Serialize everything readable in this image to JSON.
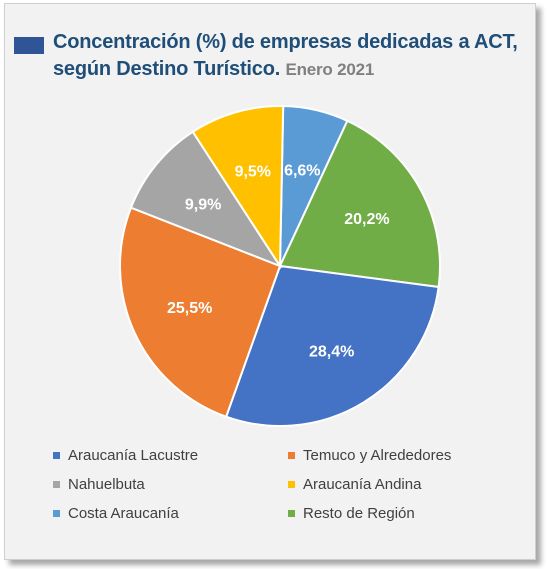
{
  "chart_data": {
    "type": "pie",
    "title": "Concentración (%) de empresas dedicadas a ACT, según Destino Turístico.",
    "subtitle": "Enero 2021",
    "legend_position": "bottom",
    "slices": [
      {
        "name": "Costa Araucanía",
        "value": 6.6,
        "label": "6,6%",
        "color": "#5b9bd5"
      },
      {
        "name": "Resto de Región",
        "value": 20.2,
        "label": "20,2%",
        "color": "#70ad47"
      },
      {
        "name": "Araucanía Lacustre",
        "value": 28.4,
        "label": "28,4%",
        "color": "#4472c4"
      },
      {
        "name": "Temuco y Alrededores",
        "value": 25.5,
        "label": "25,5%",
        "color": "#ed7d31"
      },
      {
        "name": "Nahuelbuta",
        "value": 9.9,
        "label": "9,9%",
        "color": "#a5a5a5"
      },
      {
        "name": "Araucanía Andina",
        "value": 9.5,
        "label": "9,5%",
        "color": "#ffc000"
      }
    ],
    "legend": [
      {
        "name": "Araucanía Lacustre",
        "color": "#4472c4"
      },
      {
        "name": "Temuco y Alrededores",
        "color": "#ed7d31"
      },
      {
        "name": "Nahuelbuta",
        "color": "#a5a5a5"
      },
      {
        "name": "Araucanía Andina",
        "color": "#ffc000"
      },
      {
        "name": "Costa Araucanía",
        "color": "#5b9bd5"
      },
      {
        "name": "Resto de Región",
        "color": "#70ad47"
      }
    ]
  },
  "colors": {
    "title": "#1f4e79",
    "subtitle": "#808080",
    "marker": "#2f5597",
    "panel": "#f2f2f2"
  }
}
